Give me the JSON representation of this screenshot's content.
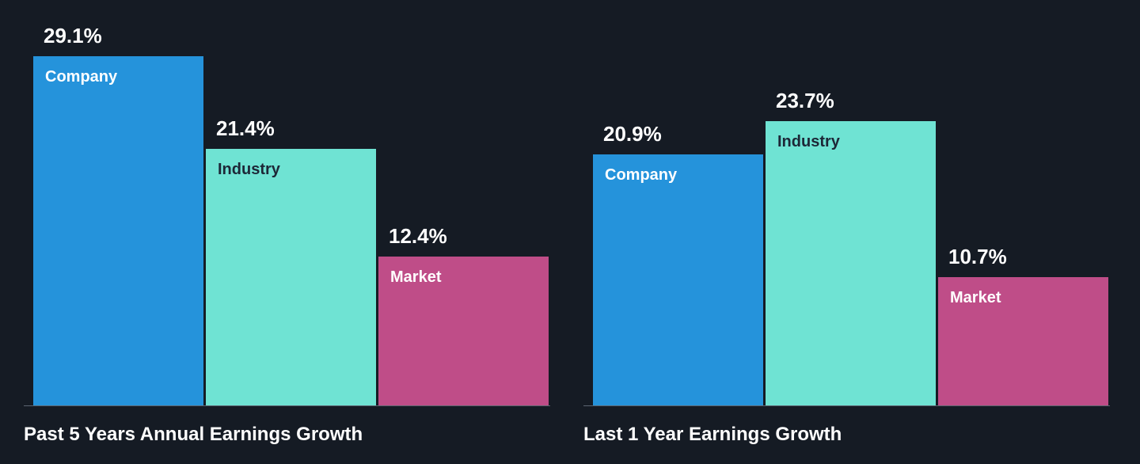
{
  "background": "#151B24",
  "baseline_color": "#5c6570",
  "chart_data": [
    {
      "type": "bar",
      "title": "Past 5 Years Annual Earnings Growth",
      "categories": [
        "Company",
        "Industry",
        "Market"
      ],
      "values": [
        29.1,
        21.4,
        12.4
      ],
      "labels": [
        "29.1%",
        "21.4%",
        "12.4%"
      ],
      "colors": [
        "#2593DB",
        "#6FE3D3",
        "#BF4D88"
      ],
      "category_label_colors": [
        "#FFFFFF",
        "#1D2737",
        "#FFFFFF"
      ],
      "value_label_color": "#FFFFFF",
      "unit": "%",
      "ylim": [
        0,
        33
      ],
      "grid": false,
      "legend": "none",
      "value_label_position": "above-bar",
      "category_label_position": "inside-top-left"
    },
    {
      "type": "bar",
      "title": "Last 1 Year Earnings Growth",
      "categories": [
        "Company",
        "Industry",
        "Market"
      ],
      "values": [
        20.9,
        23.7,
        10.7
      ],
      "labels": [
        "20.9%",
        "23.7%",
        "10.7%"
      ],
      "colors": [
        "#2593DB",
        "#6FE3D3",
        "#BF4D88"
      ],
      "category_label_colors": [
        "#FFFFFF",
        "#1D2737",
        "#FFFFFF"
      ],
      "value_label_color": "#FFFFFF",
      "unit": "%",
      "ylim": [
        0,
        33
      ],
      "grid": false,
      "legend": "none",
      "value_label_position": "above-bar",
      "category_label_position": "inside-top-left"
    }
  ]
}
